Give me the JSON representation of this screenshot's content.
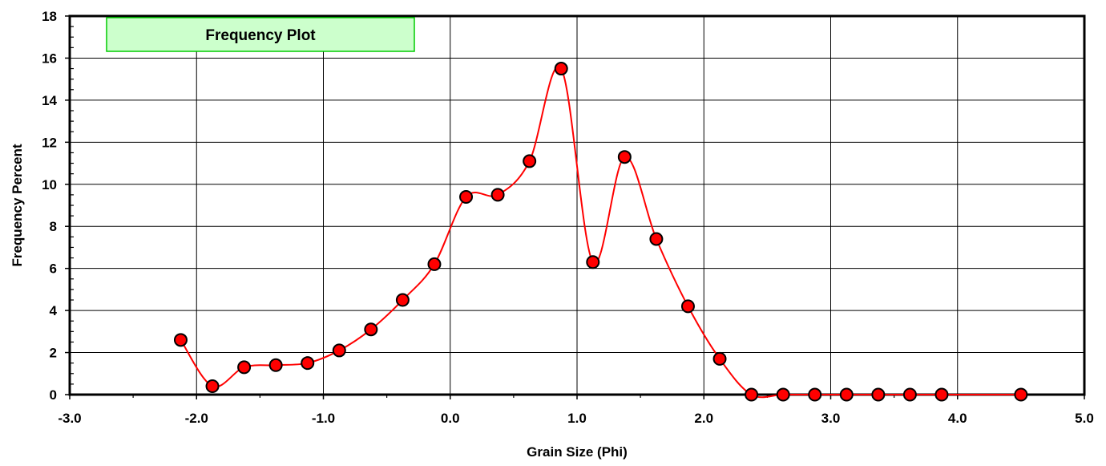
{
  "chart_data": {
    "type": "line",
    "title": "Frequency Plot",
    "xlabel": "Grain Size (Phi)",
    "ylabel": "Frequency Percent",
    "xlim": [
      -3.0,
      5.0
    ],
    "ylim": [
      0,
      18
    ],
    "x_ticks": [
      "-3.0",
      "-2.0",
      "-1.0",
      "0.0",
      "1.0",
      "2.0",
      "3.0",
      "4.0",
      "5.0"
    ],
    "y_ticks": [
      "0",
      "2",
      "4",
      "6",
      "8",
      "10",
      "12",
      "14",
      "16",
      "18"
    ],
    "x_minor_step": 0.5,
    "y_minor_step": 0.5,
    "grid": true,
    "legend": "none",
    "colors": {
      "line": "#ff0000",
      "marker_fill": "#ff0000",
      "marker_edge": "#000000",
      "title_box": "#ccffcc",
      "title_border": "#00cc00",
      "grid": "#000000"
    },
    "series": [
      {
        "x": [
          -2.125,
          -1.875,
          -1.625,
          -1.375,
          -1.125,
          -0.875,
          -0.625,
          -0.375,
          -0.125,
          0.125,
          0.375,
          0.625,
          0.875,
          1.125,
          1.375,
          1.625,
          1.875,
          2.125,
          2.375,
          2.625,
          2.875,
          3.125,
          3.375,
          3.625,
          3.875,
          4.5
        ],
        "values": [
          2.6,
          0.4,
          1.3,
          1.4,
          1.5,
          2.1,
          3.1,
          4.5,
          6.2,
          9.4,
          9.5,
          11.1,
          15.5,
          6.3,
          11.3,
          7.4,
          4.2,
          1.7,
          0.0,
          0.0,
          0.0,
          0.0,
          0.0,
          0.0,
          0.0,
          0.0
        ]
      }
    ]
  }
}
